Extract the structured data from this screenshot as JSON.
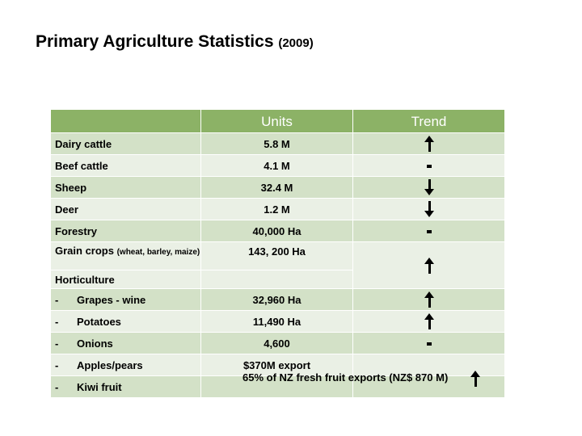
{
  "page": {
    "title": "Primary Agriculture Statistics",
    "year": "(2009)"
  },
  "table": {
    "headers": {
      "item": "",
      "units": "Units",
      "trend": "Trend"
    },
    "rows": [
      {
        "item": "Dairy cattle",
        "units": "5.8 M",
        "trend": "up"
      },
      {
        "item": "Beef cattle",
        "units": "4.1 M",
        "trend": "steady"
      },
      {
        "item": "Sheep",
        "units": "32.4 M",
        "trend": "down"
      },
      {
        "item": "Deer",
        "units": "1.2 M",
        "trend": "down"
      },
      {
        "item": "Forestry",
        "units": "40,000 Ha",
        "trend": "steady"
      },
      {
        "item": "Grain crops",
        "item_note": "(wheat, barley, maize)",
        "units": "143, 200 Ha",
        "trend": "up"
      },
      {
        "item": "Horticulture",
        "units": "",
        "trend": ""
      },
      {
        "dash": "-",
        "item": "Grapes - wine",
        "units": "32,960 Ha",
        "trend": "up"
      },
      {
        "dash": "-",
        "item": "Potatoes",
        "units": "11,490 Ha",
        "trend": "up"
      },
      {
        "dash": "-",
        "item": "Onions",
        "units": "4,600",
        "trend": "steady"
      },
      {
        "dash": "-",
        "item": "Apples/pears",
        "units": "$370M export",
        "trend": ""
      },
      {
        "dash": "-",
        "item": "Kiwi fruit",
        "units": "65% of NZ fresh fruit exports (NZ$ 870 M)",
        "trend": "up"
      }
    ]
  }
}
